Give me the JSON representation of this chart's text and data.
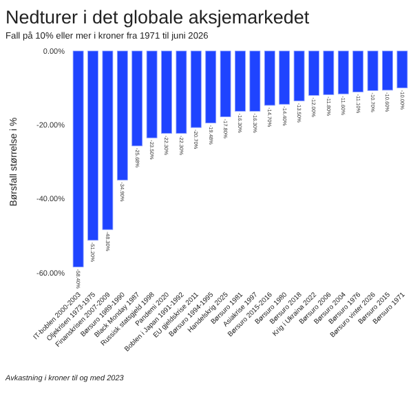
{
  "chart_data": {
    "type": "bar",
    "title": "Nedturer i det globale aksjemarkedet",
    "subtitle": "Fall på 10% eller mer i kroner fra 1971 til juni 2026",
    "ylabel": "Børsfall størrelse i %",
    "categories": [
      "IT-boblen 2000-2003",
      "Oljekrisen 1973-1975",
      "Finanskrisen 2007-2009",
      "Børsuro 1989-1990",
      "Black Monday 1987",
      "Russisk statsgjeld 1998",
      "Pandemi 2020",
      "Boblen i Japan 1991-1992",
      "EU gjeldskrise 2011",
      "Børsuro 1994-1995",
      "Handelskrig 2025",
      "Børsuro 1981",
      "Asiakrise 1997",
      "Børsuro 2015-2016",
      "Børsuro 1980",
      "Børsuro 2018",
      "Krig i Ukraina 2022",
      "Børsuro 2006",
      "Børsuro 2004",
      "Børsuro 1976",
      "Børsuro vinter 2026",
      "Børsuro 2015",
      "Børsuro 1971"
    ],
    "values": [
      -58.4,
      -51.2,
      -48.3,
      -34.9,
      -25.68,
      -23.5,
      -22.3,
      -22.3,
      -20.7,
      -19.48,
      -17.8,
      -16.3,
      -16.3,
      -14.7,
      -14.4,
      -13.5,
      -12.0,
      -11.8,
      -11.6,
      -11.1,
      -10.7,
      -10.6,
      -10.0
    ],
    "value_labels": [
      "-58.40%",
      "-51.20%",
      "-48.30%",
      "-34.90%",
      "-25.68%",
      "-23.50%",
      "-22.30%",
      "-22.30%",
      "-20.70%",
      "-19.48%",
      "-17.80%",
      "-16.30%",
      "-16.30%",
      "-14.70%",
      "-14.40%",
      "-13.50%",
      "-12.00%",
      "-11.80%",
      "-11.60%",
      "-11.10%",
      "-10.70%",
      "-10.60%",
      "-10.00%"
    ],
    "color": "#1f44ff",
    "ylim": [
      -60,
      0
    ],
    "yticks": [
      {
        "value": 0,
        "label": "0.00%"
      },
      {
        "value": -20,
        "label": "-20.00%"
      },
      {
        "value": -40,
        "label": "-40.00%"
      },
      {
        "value": -60,
        "label": "-60.00%"
      }
    ],
    "annotations": [
      "Avkastning i kroner til og med 2023"
    ]
  }
}
